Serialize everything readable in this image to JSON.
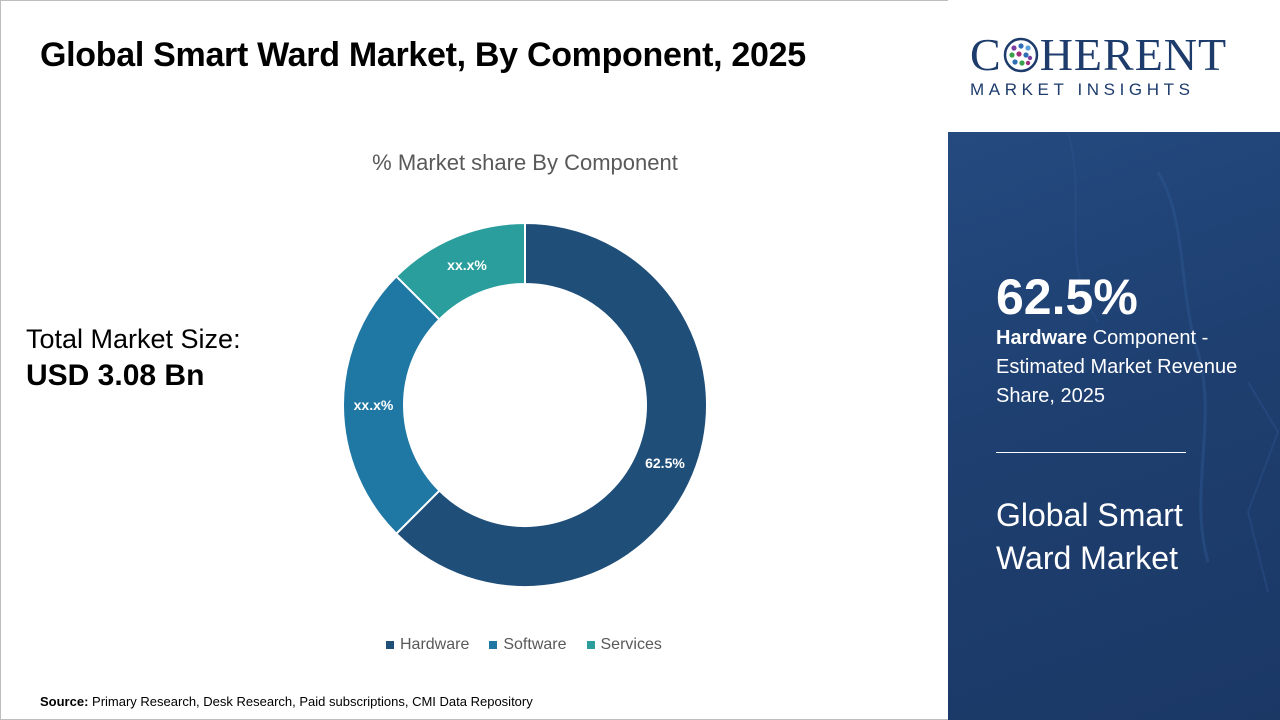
{
  "title": "Global Smart Ward Market, By Component, 2025",
  "market_size": {
    "label": "Total Market Size:",
    "value": "USD 3.08 Bn"
  },
  "source": {
    "label": "Source:",
    "text": "Primary Research, Desk Research, Paid subscriptions, CMI Data Repository"
  },
  "logo": {
    "line1_prefix": "C",
    "line1_suffix": "HERENT",
    "line2": "MARKET INSIGHTS"
  },
  "highlight": {
    "value": "62.5%",
    "bold": "Hardware",
    "desc": " Component - Estimated Market Revenue Share, 2025",
    "market_name": "Global Smart Ward Market"
  },
  "chart_data": {
    "type": "pie",
    "title": "% Market share By Component",
    "categories": [
      "Hardware",
      "Software",
      "Services"
    ],
    "values": [
      62.5,
      25.0,
      12.5
    ],
    "data_labels": [
      "62.5%",
      "xx.x%",
      "xx.x%"
    ],
    "colors": [
      "#1f4e79",
      "#1f77a4",
      "#2a9d9d"
    ],
    "donut": true,
    "legend": "bottom"
  }
}
